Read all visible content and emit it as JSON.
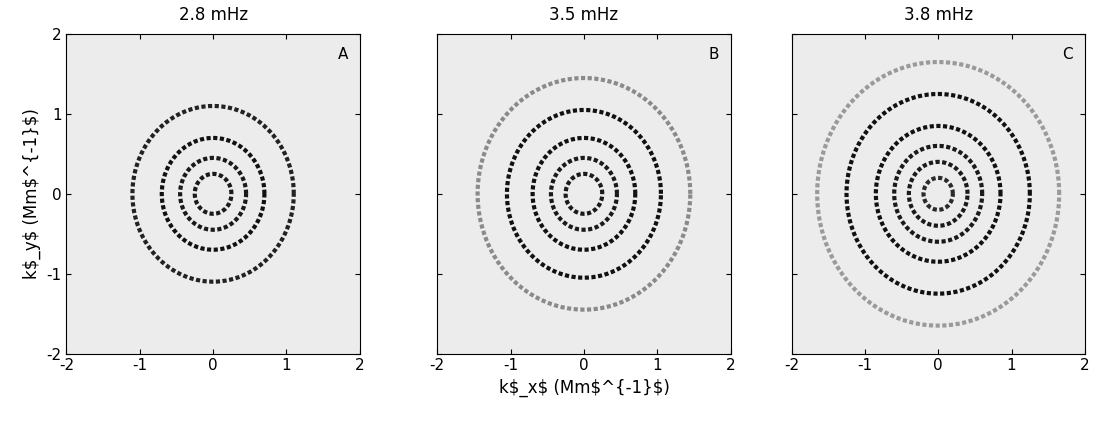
{
  "chart_data": [
    {
      "type": "rings",
      "title": "2.8 mHz",
      "annotation": "A",
      "ylabel": "k$_y$ (Mm$^{-1}$)",
      "ring_radii": [
        0.25,
        0.45,
        0.7,
        1.1
      ],
      "colors": [
        "#1a1a1a",
        "#1a1a1a",
        "#111111",
        "#222222"
      ],
      "xlim": [
        -2,
        2
      ],
      "ylim": [
        -2,
        2
      ],
      "xticks": [
        -2,
        -1,
        0,
        1,
        2
      ],
      "yticks": [
        -2,
        -1,
        0,
        1,
        2
      ]
    },
    {
      "type": "rings",
      "title": "3.5 mHz",
      "annotation": "B",
      "xlabel": "k$_x$ (Mm$^{-1}$)",
      "ring_radii": [
        0.25,
        0.45,
        0.7,
        1.05,
        1.45
      ],
      "colors": [
        "#1a1a1a",
        "#1a1a1a",
        "#111111",
        "#111111",
        "#8a8a8a"
      ],
      "xlim": [
        -2,
        2
      ],
      "ylim": [
        -2,
        2
      ],
      "xticks": [
        -2,
        -1,
        0,
        1,
        2
      ],
      "yticks": [
        -2,
        -1,
        0,
        1,
        2
      ],
      "tick_labels": "x"
    },
    {
      "type": "rings",
      "title": "3.8 mHz",
      "annotation": "C",
      "ring_radii": [
        0.2,
        0.4,
        0.6,
        0.85,
        1.25,
        1.65
      ],
      "colors": [
        "#2a2a2a",
        "#1a1a1a",
        "#1a1a1a",
        "#111111",
        "#111111",
        "#9a9a9a"
      ],
      "xlim": [
        -2,
        2
      ],
      "ylim": [
        -2,
        2
      ],
      "xticks": [
        -2,
        -1,
        0,
        1,
        2
      ],
      "yticks": [
        -2,
        -1,
        0,
        1,
        2
      ],
      "tick_labels": "x"
    }
  ]
}
